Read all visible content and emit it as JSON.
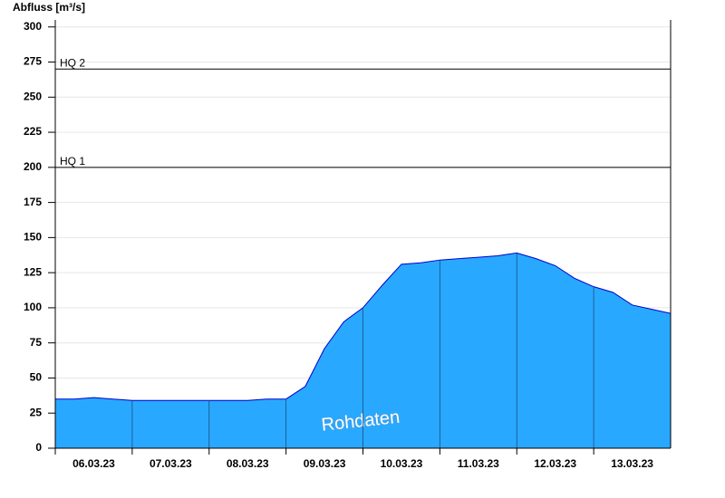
{
  "chart_data": {
    "type": "area",
    "y_label": "Abfluss [m³/s]",
    "x": [
      0,
      0.25,
      0.5,
      0.75,
      1,
      1.25,
      1.5,
      1.75,
      2,
      2.25,
      2.5,
      2.75,
      3,
      3.25,
      3.5,
      3.75,
      4,
      4.25,
      4.5,
      4.75,
      5,
      5.25,
      5.5,
      5.75,
      6,
      6.25,
      6.5,
      6.75,
      7,
      7.25,
      7.5,
      7.75,
      8
    ],
    "series": [
      {
        "name": "Rohdaten",
        "color": "#29a8ff",
        "line_color": "#0000cc",
        "values": [
          35,
          35,
          36,
          35,
          34,
          34,
          34,
          34,
          34,
          34,
          34,
          35,
          35,
          44,
          71,
          90,
          100,
          116,
          131,
          132,
          134,
          135,
          136,
          137,
          139,
          135,
          130,
          121,
          115,
          111,
          102,
          99,
          96
        ]
      }
    ],
    "reference_lines": [
      {
        "label": "HQ 1",
        "value": 200
      },
      {
        "label": "HQ 2",
        "value": 270
      }
    ],
    "xlim": [
      0,
      8
    ],
    "xticks": [
      {
        "value": 0,
        "label": "06.03.23"
      },
      {
        "value": 1,
        "label": "07.03.23"
      },
      {
        "value": 2,
        "label": "08.03.23"
      },
      {
        "value": 3,
        "label": "09.03.23"
      },
      {
        "value": 4,
        "label": "10.03.23"
      },
      {
        "value": 5,
        "label": "11.03.23"
      },
      {
        "value": 6,
        "label": "12.03.23"
      },
      {
        "value": 7,
        "label": "13.03.23"
      }
    ],
    "ylim": [
      0,
      305
    ],
    "yticks": [
      0,
      25,
      50,
      75,
      100,
      125,
      150,
      175,
      200,
      225,
      250,
      275,
      300
    ],
    "grid": true
  }
}
